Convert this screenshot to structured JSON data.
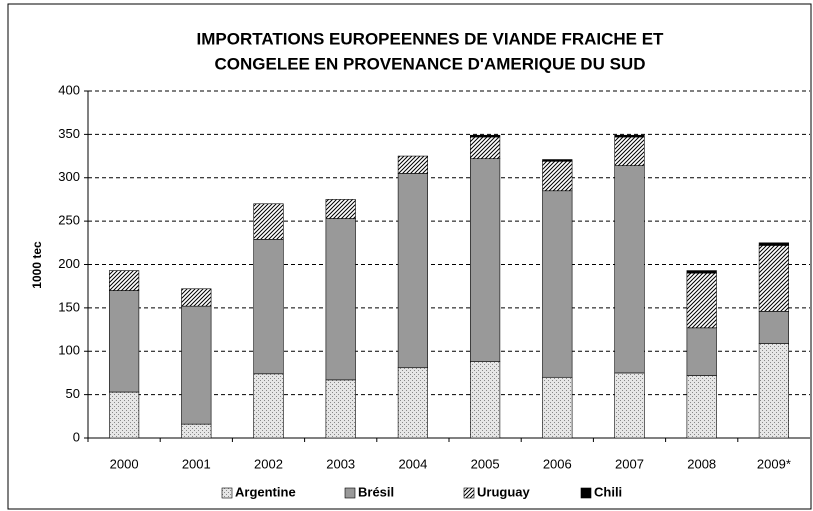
{
  "chart_data": {
    "type": "stacked_bar",
    "title": [
      "IMPORTATIONS EUROPEENNES DE VIANDE FRAICHE ET",
      "CONGELEE EN PROVENANCE D'AMERIQUE DU SUD"
    ],
    "y_label": "1000 tec",
    "categories": [
      "2000",
      "2001",
      "2002",
      "2003",
      "2004",
      "2005",
      "2006",
      "2007",
      "2008",
      "2009*"
    ],
    "series": [
      {
        "name": "Argentine",
        "color": "#e6e6e6",
        "pattern": "dots",
        "values": [
          53,
          16,
          74,
          67,
          81,
          88,
          70,
          75,
          72,
          109
        ]
      },
      {
        "name": "Brésil",
        "color": "#999999",
        "pattern": "solid",
        "values": [
          117,
          136,
          155,
          186,
          224,
          234,
          215,
          239,
          55,
          37
        ]
      },
      {
        "name": "Uruguay",
        "color": "#ffffff",
        "pattern": "hatch",
        "values": [
          23,
          20,
          41,
          22,
          20,
          25,
          34,
          33,
          63,
          76
        ]
      },
      {
        "name": "Chili",
        "color": "#000000",
        "pattern": "solid",
        "values": [
          0,
          0,
          0,
          0,
          0,
          2,
          2,
          2,
          3,
          3
        ]
      }
    ],
    "ylim": [
      0,
      400
    ],
    "yticks": [
      0,
      50,
      100,
      150,
      200,
      250,
      300,
      350,
      400
    ],
    "grid": true,
    "legend": "bottom"
  }
}
